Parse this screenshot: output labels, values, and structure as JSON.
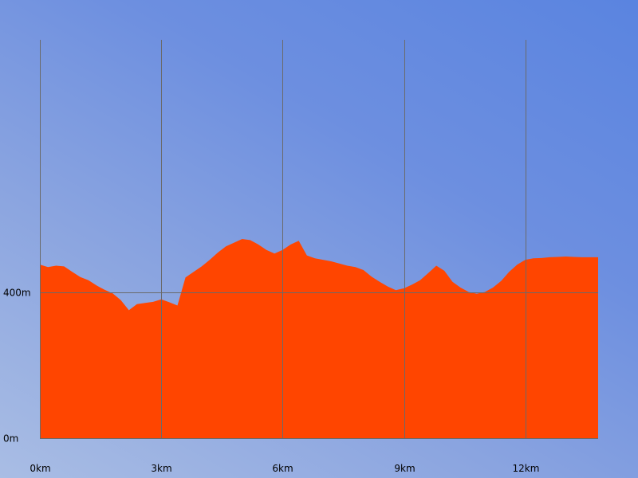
{
  "chart_data": {
    "type": "area",
    "title": "",
    "xlabel": "",
    "ylabel": "",
    "x_unit": "km",
    "y_unit": "m",
    "xlim": [
      0,
      13.8
    ],
    "ylim": [
      0,
      1090
    ],
    "x_ticks": [
      {
        "value": 0,
        "label": "0km"
      },
      {
        "value": 3,
        "label": "3km"
      },
      {
        "value": 6,
        "label": "6km"
      },
      {
        "value": 9,
        "label": "9km"
      },
      {
        "value": 12,
        "label": "12km"
      }
    ],
    "y_ticks": [
      {
        "value": 0,
        "label": "0m"
      },
      {
        "value": 400,
        "label": "400m"
      }
    ],
    "grid": true,
    "fill_color": "#ff4500",
    "series": [
      {
        "x": [
          0,
          0.2,
          0.4,
          0.6,
          0.8,
          1.0,
          1.2,
          1.4,
          1.6,
          1.8,
          2.0,
          2.2,
          2.4,
          2.6,
          2.8,
          3.0,
          3.2,
          3.4,
          3.6,
          3.8,
          4.0,
          4.2,
          4.4,
          4.6,
          4.8,
          5.0,
          5.2,
          5.4,
          5.6,
          5.8,
          6.0,
          6.2,
          6.4,
          6.6,
          6.8,
          7.0,
          7.2,
          7.4,
          7.6,
          7.8,
          8.0,
          8.2,
          8.4,
          8.6,
          8.8,
          9.0,
          9.2,
          9.4,
          9.6,
          9.8,
          10.0,
          10.2,
          10.4,
          10.6,
          10.8,
          11.0,
          11.2,
          11.4,
          11.6,
          11.8,
          12.0,
          12.2,
          12.4,
          12.6,
          12.8,
          13.0,
          13.2,
          13.4,
          13.6,
          13.8
        ],
        "y": [
          475,
          468,
          472,
          470,
          455,
          441,
          432,
          418,
          406,
          396,
          378,
          350,
          367,
          370,
          373,
          380,
          372,
          363,
          440,
          455,
          470,
          488,
          508,
          525,
          535,
          545,
          542,
          530,
          515,
          505,
          515,
          530,
          540,
          500,
          492,
          488,
          484,
          478,
          472,
          468,
          460,
          442,
          428,
          415,
          405,
          410,
          420,
          432,
          452,
          472,
          458,
          428,
          412,
          400,
          395,
          400,
          412,
          430,
          455,
          475,
          488,
          492,
          493,
          495,
          496,
          497,
          496,
          495,
          495,
          495
        ]
      }
    ]
  }
}
